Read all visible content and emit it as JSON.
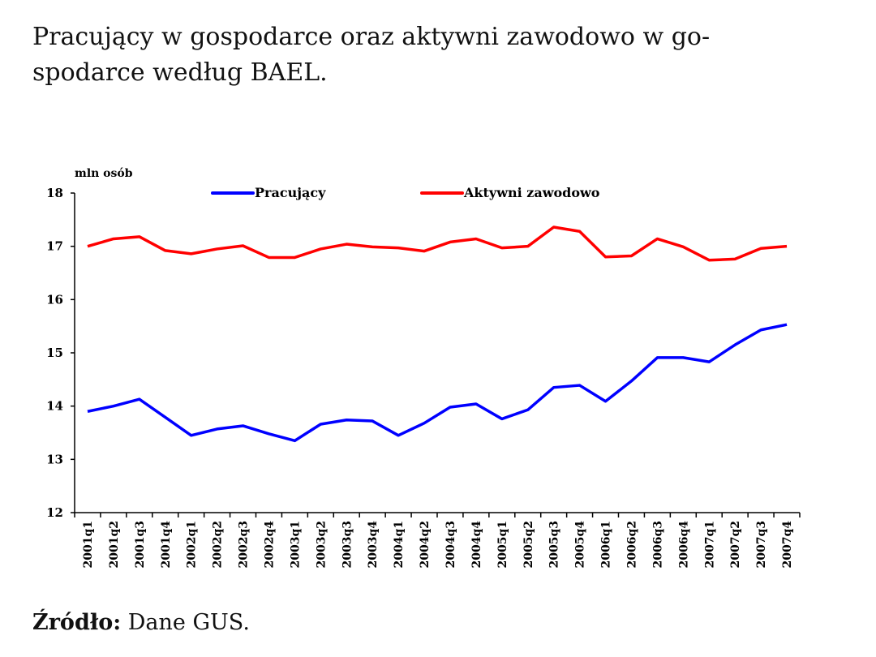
{
  "page": {
    "title": "Pracujący w gospodarce oraz aktywni zawodowo w gospodarce według BAEL.",
    "title_line1": "Pracujący w gospodarce oraz aktywni zawodowo w go-",
    "title_line2": "spodarce według BAEL.",
    "source_label": "Źródło:",
    "source_text": " Dane GUS."
  },
  "chart_data": {
    "type": "line",
    "title": "Pracujący w gospodarce oraz aktywni zawodowo w gospodarce według BAEL.",
    "ylabel": "mln osób",
    "xlabel": "",
    "ylim": [
      12,
      18
    ],
    "yticks": [
      12,
      13,
      14,
      15,
      16,
      17,
      18
    ],
    "grid": false,
    "legend": "top",
    "categories": [
      "2001q1",
      "2001q2",
      "2001q3",
      "2001q4",
      "2002q1",
      "2002q2",
      "2002q3",
      "2002q4",
      "2003q1",
      "2003q2",
      "2003q3",
      "2003q4",
      "2004q1",
      "2004q2",
      "2004q3",
      "2004q4",
      "2005q1",
      "2005q2",
      "2005q3",
      "2005q4",
      "2006q1",
      "2006q2",
      "2006q3",
      "2006q4",
      "2007q1",
      "2007q2",
      "2007q3",
      "2007q4"
    ],
    "series": [
      {
        "name": "Pracujący",
        "color": "#0000ff",
        "values": [
          13.9,
          14.0,
          14.13,
          13.79,
          13.45,
          13.57,
          13.63,
          13.48,
          13.35,
          13.66,
          13.74,
          13.72,
          13.45,
          13.68,
          13.98,
          14.04,
          13.76,
          13.93,
          14.35,
          14.39,
          14.09,
          14.47,
          14.91,
          14.91,
          14.83,
          15.15,
          15.43,
          15.53
        ]
      },
      {
        "name": "Aktywni zawodowo",
        "color": "#ff0000",
        "values": [
          17.0,
          17.14,
          17.18,
          16.92,
          16.86,
          16.95,
          17.01,
          16.79,
          16.79,
          16.95,
          17.04,
          16.99,
          16.97,
          16.91,
          17.08,
          17.14,
          16.97,
          17.0,
          17.36,
          17.28,
          16.8,
          16.82,
          17.14,
          16.99,
          16.74,
          16.76,
          16.96,
          17.0
        ]
      }
    ]
  }
}
